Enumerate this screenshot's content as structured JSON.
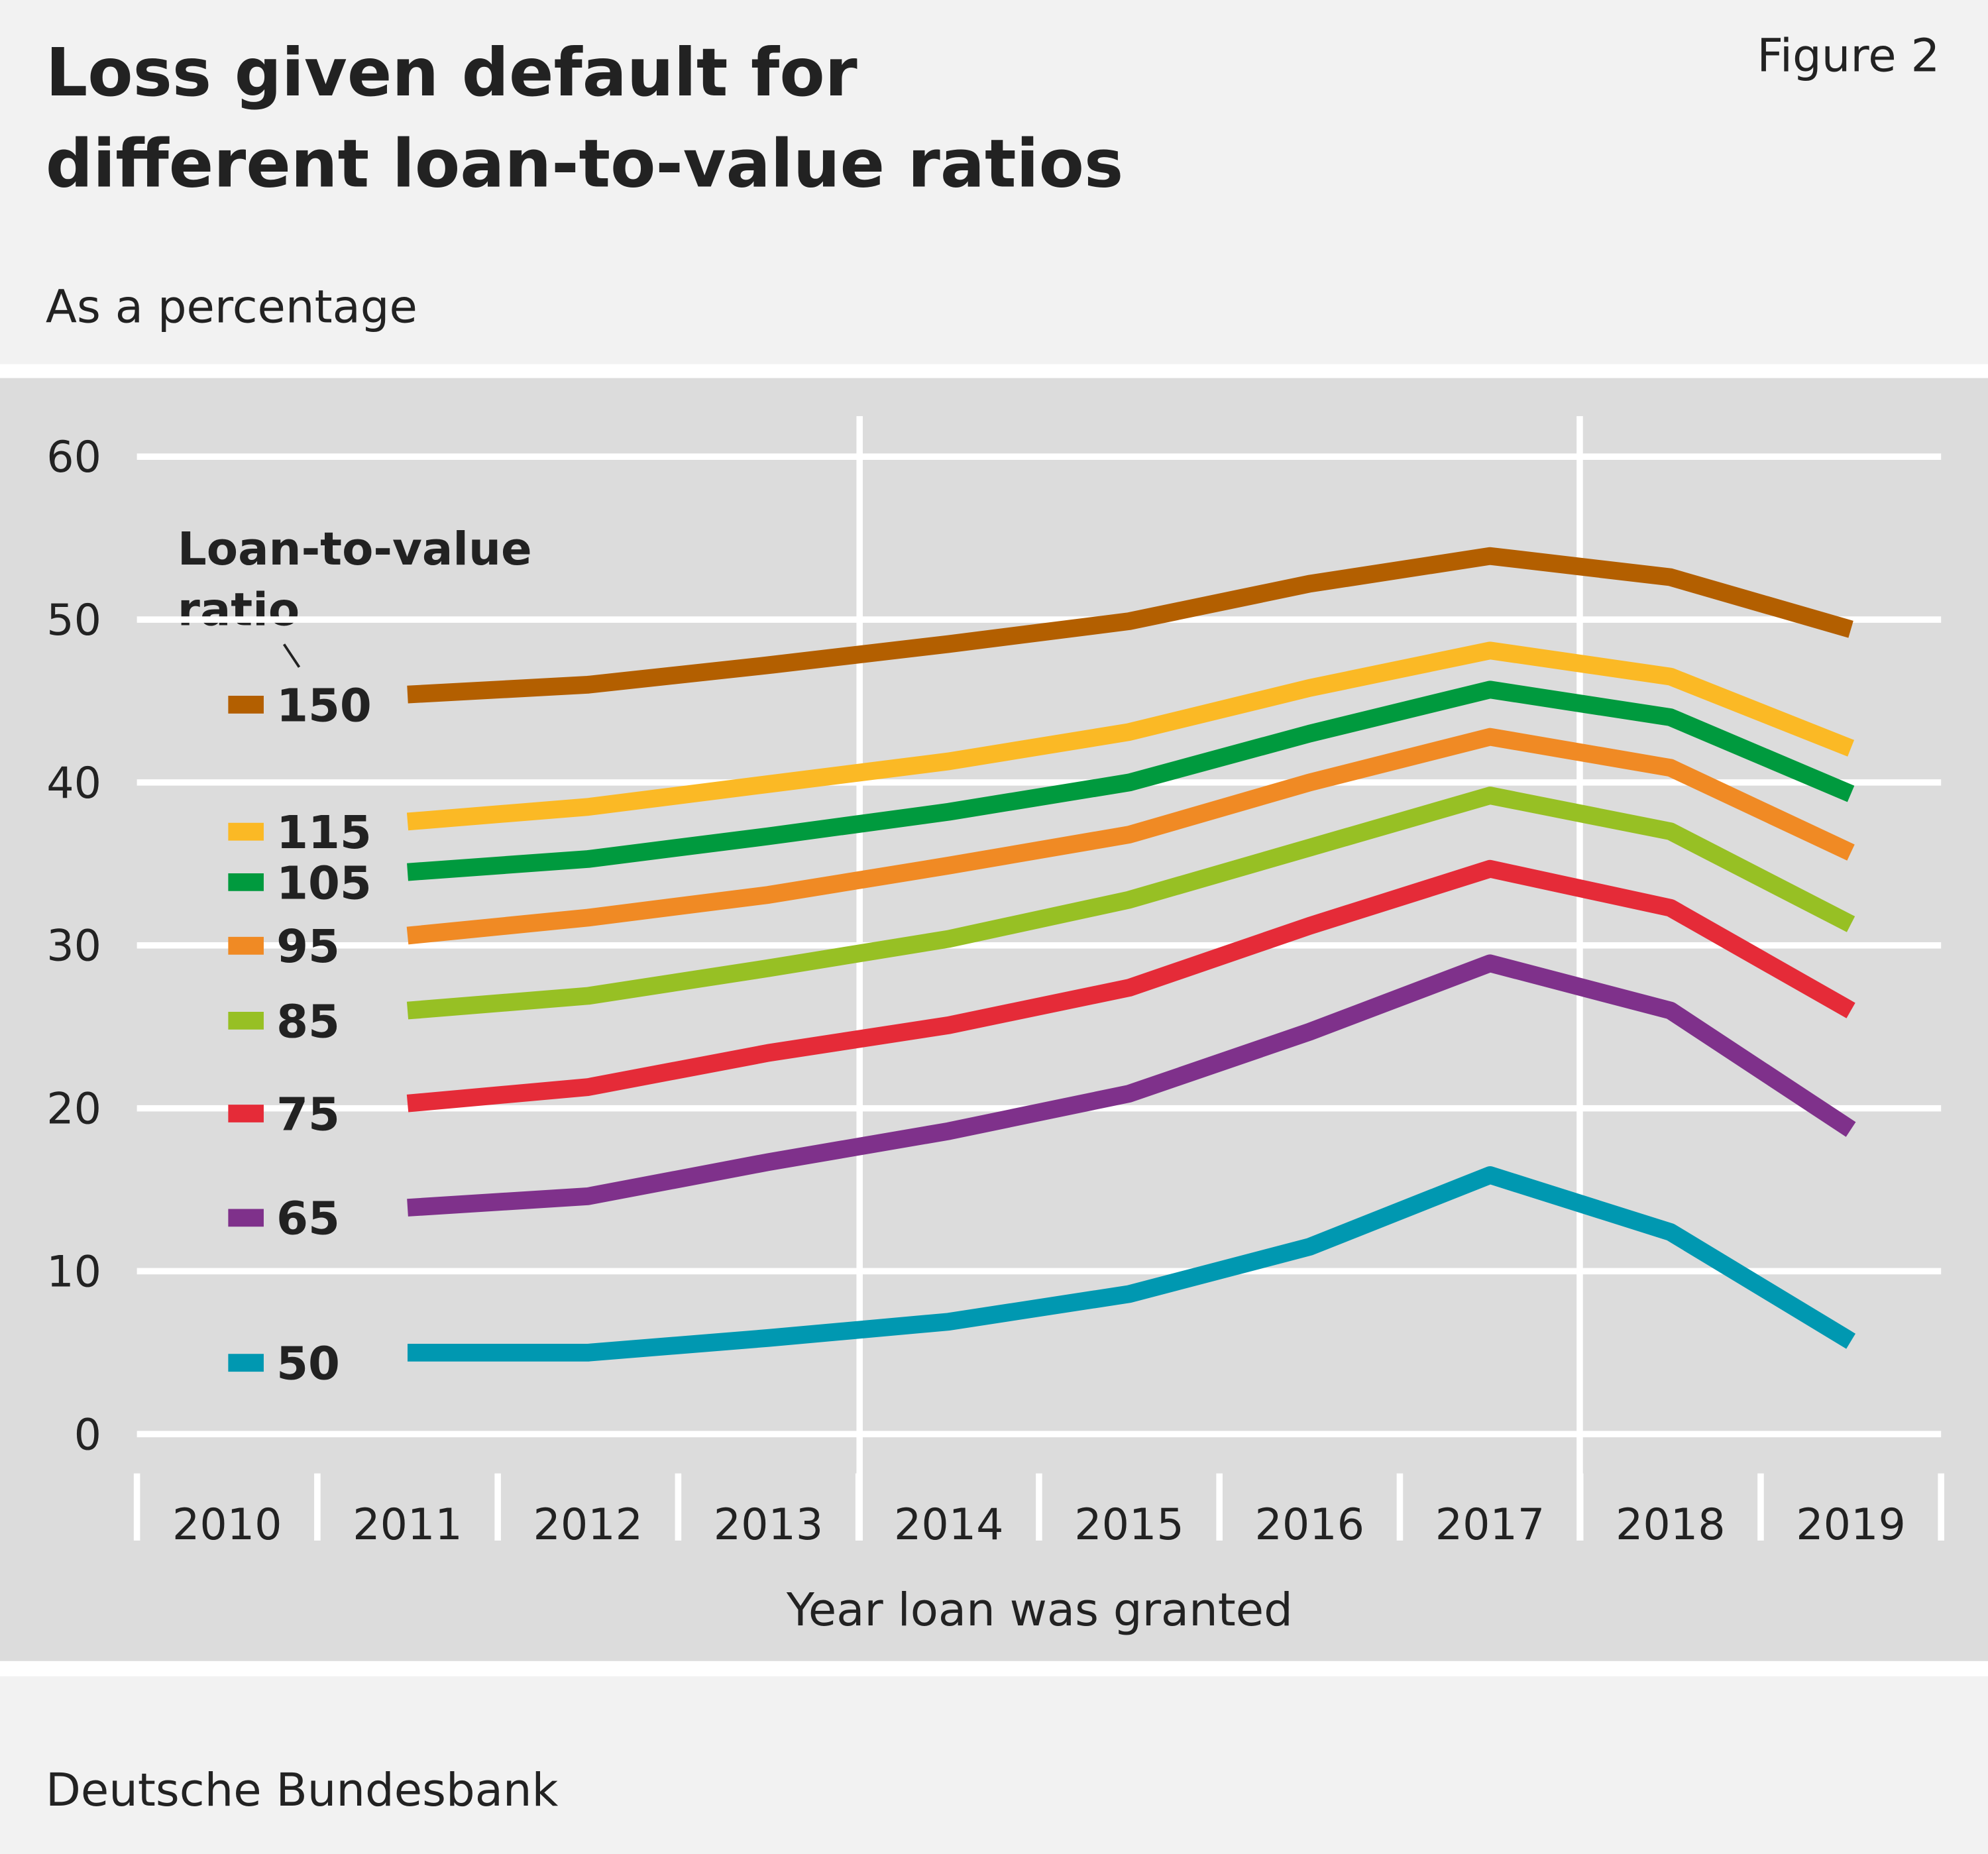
{
  "chart_data": {
    "type": "line",
    "title": "Loss given default for different loan-to-value ratios",
    "figure_label": "Figure 2",
    "subtitle": "As a percentage",
    "x_label": "Year loan was granted",
    "source": "Deutsche Bundesbank",
    "legend_title": "Loan-to-value ratio",
    "categories": [
      "2010",
      "2011",
      "2012",
      "2013",
      "2014",
      "2015",
      "2016",
      "2017",
      "2018",
      "2019"
    ],
    "ylim": [
      0,
      60
    ],
    "yticks": [
      0,
      10,
      20,
      30,
      40,
      50,
      60
    ],
    "grid": true,
    "series": [
      {
        "name": "150",
        "color": "#b35f00",
        "values": [
          null,
          45.4,
          46.0,
          47.2,
          48.5,
          49.9,
          52.2,
          53.9,
          52.6,
          49.4
        ]
      },
      {
        "name": "115",
        "color": "#fbb925",
        "values": [
          null,
          37.6,
          38.5,
          39.9,
          41.3,
          43.1,
          45.8,
          48.1,
          46.5,
          42.1
        ]
      },
      {
        "name": "105",
        "color": "#009a3e",
        "values": [
          null,
          34.5,
          35.3,
          36.7,
          38.2,
          40.0,
          43.0,
          45.7,
          44.0,
          39.3
        ]
      },
      {
        "name": "95",
        "color": "#f08a24",
        "values": [
          null,
          30.6,
          31.7,
          33.1,
          34.9,
          36.8,
          40.0,
          42.8,
          40.9,
          35.7
        ]
      },
      {
        "name": "85",
        "color": "#97c024",
        "values": [
          null,
          26.0,
          26.9,
          28.6,
          30.4,
          32.8,
          36.0,
          39.2,
          37.0,
          31.3
        ]
      },
      {
        "name": "75",
        "color": "#e52b38",
        "values": [
          null,
          20.3,
          21.3,
          23.4,
          25.1,
          27.4,
          31.2,
          34.7,
          32.3,
          26.0
        ]
      },
      {
        "name": "65",
        "color": "#7f318b",
        "values": [
          null,
          13.9,
          14.6,
          16.7,
          18.6,
          20.9,
          24.7,
          28.9,
          26.0,
          18.7
        ]
      },
      {
        "name": "50",
        "color": "#0098b1",
        "values": [
          null,
          5.0,
          5.0,
          5.9,
          6.9,
          8.6,
          11.5,
          15.9,
          12.4,
          5.7
        ]
      }
    ]
  }
}
